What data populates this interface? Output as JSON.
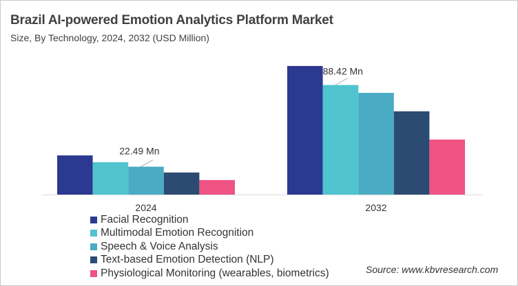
{
  "title": "Brazil AI-powered Emotion Analytics Platform Market",
  "subtitle": "Size, By Technology, 2024, 2032 (USD Million)",
  "source": "Source: www.kbvresearch.com",
  "chart_data": {
    "type": "bar",
    "title": "Brazil AI-powered Emotion Analytics Platform Market",
    "subtitle": "Size, By Technology, 2024, 2032 (USD Million)",
    "categories": [
      "2024",
      "2032"
    ],
    "series": [
      {
        "name": "Facial Recognition",
        "color": "#2b3990",
        "values": [
          31.6,
          103.8
        ]
      },
      {
        "name": "Multimodal Emotion Recognition",
        "color": "#4fc4cf",
        "values": [
          26.1,
          88.42
        ]
      },
      {
        "name": "Speech & Voice Analysis",
        "color": "#4aabc4",
        "values": [
          22.49,
          82.1
        ]
      },
      {
        "name": "Text-based Emotion Detection (NLP)",
        "color": "#2c4b73",
        "values": [
          17.8,
          67.2
        ]
      },
      {
        "name": "Physiological Monitoring (wearables, biometrics)",
        "color": "#ef5383",
        "values": [
          11.7,
          44.4
        ]
      }
    ],
    "annotations": [
      {
        "text": "22.49 Mn",
        "category": "2024",
        "series": "Speech & Voice Analysis"
      },
      {
        "text": "88.42 Mn",
        "category": "2032",
        "series": "Multimodal Emotion Recognition"
      }
    ],
    "ylim": [
      0,
      110
    ],
    "grid": false,
    "legend": "bottom-left"
  }
}
